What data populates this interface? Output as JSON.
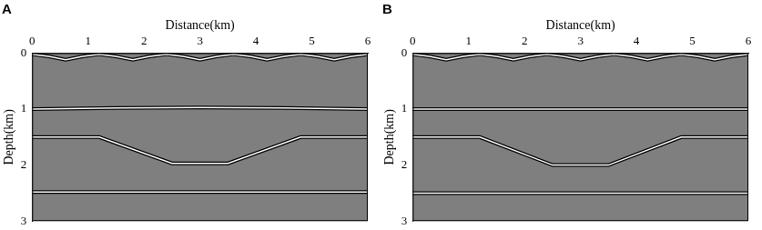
{
  "chart_data": [
    {
      "type": "line",
      "title": "A",
      "x_label": "Distance(km)",
      "y_label": "Depth(km)",
      "xlim": [
        0,
        6
      ],
      "xticks": [
        0,
        1,
        2,
        3,
        4,
        5,
        6
      ],
      "ylim": [
        3,
        0
      ],
      "yticks": [
        0,
        1,
        2,
        3
      ],
      "grid": false,
      "series": [
        {
          "color": "#ffffff",
          "x": [
            0,
            0.3,
            0.6,
            0.9,
            1.2,
            1.5,
            1.8,
            2.1,
            2.4,
            2.7,
            3.0,
            3.3,
            3.6,
            3.9,
            4.2,
            4.5,
            4.8,
            5.1,
            5.4,
            5.7,
            6.0
          ],
          "values": [
            0.02,
            0.06,
            0.12,
            0.06,
            0.02,
            0.06,
            0.12,
            0.06,
            0.02,
            0.06,
            0.12,
            0.06,
            0.02,
            0.06,
            0.12,
            0.06,
            0.02,
            0.06,
            0.12,
            0.06,
            0.02
          ]
        },
        {
          "color": "#ffffff",
          "x": [
            0,
            1.5,
            3.0,
            4.5,
            6.0
          ],
          "values": [
            1.0,
            0.98,
            0.97,
            0.98,
            1.0
          ]
        },
        {
          "color": "#ffffff",
          "x": [
            0,
            1.2,
            2.5,
            3.5,
            4.8,
            6.0
          ],
          "values": [
            1.5,
            1.5,
            1.97,
            1.97,
            1.5,
            1.5
          ]
        },
        {
          "color": "#ffffff",
          "x": [
            0,
            6.0
          ],
          "values": [
            2.48,
            2.48
          ]
        }
      ]
    },
    {
      "type": "line",
      "title": "B",
      "x_label": "Distance(km)",
      "y_label": "Depth(km)",
      "xlim": [
        0,
        6
      ],
      "xticks": [
        0,
        1,
        2,
        3,
        4,
        5,
        6
      ],
      "ylim": [
        3,
        0
      ],
      "yticks": [
        0,
        1,
        2,
        3
      ],
      "grid": false,
      "series": [
        {
          "color": "#ffffff",
          "x": [
            0,
            0.3,
            0.6,
            0.9,
            1.2,
            1.5,
            1.8,
            2.1,
            2.4,
            2.7,
            3.0,
            3.3,
            3.6,
            3.9,
            4.2,
            4.5,
            4.8,
            5.1,
            5.4,
            5.7,
            6.0
          ],
          "values": [
            0.02,
            0.06,
            0.12,
            0.06,
            0.02,
            0.06,
            0.12,
            0.06,
            0.02,
            0.06,
            0.12,
            0.06,
            0.02,
            0.06,
            0.12,
            0.06,
            0.02,
            0.06,
            0.12,
            0.06,
            0.02
          ]
        },
        {
          "color": "#ffffff",
          "x": [
            0,
            6.0
          ],
          "values": [
            1.0,
            1.0
          ]
        },
        {
          "color": "#ffffff",
          "x": [
            0,
            1.2,
            2.5,
            3.5,
            4.8,
            6.0
          ],
          "values": [
            1.5,
            1.5,
            2.0,
            2.0,
            1.5,
            1.5
          ]
        },
        {
          "color": "#ffffff",
          "x": [
            0,
            6.0
          ],
          "values": [
            2.5,
            2.5
          ]
        }
      ]
    }
  ]
}
